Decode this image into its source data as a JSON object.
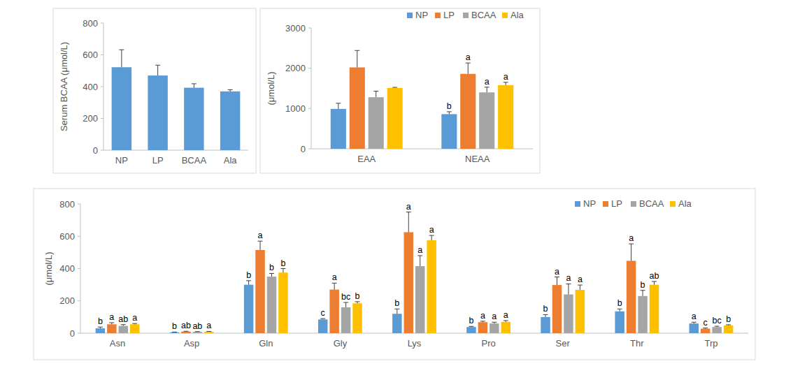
{
  "chart_data": [
    {
      "type": "bar",
      "ylabel": "Serum BCAA (μmol/L)",
      "categories": [
        "NP",
        "LP",
        "BCAA",
        "Ala"
      ],
      "values": [
        522,
        470,
        393,
        370
      ],
      "errors": [
        110,
        65,
        25,
        10
      ],
      "color": "#5b9bd5",
      "ylim": [
        0,
        800
      ],
      "yticks": [
        0,
        200,
        400,
        600,
        800
      ],
      "grid": false
    },
    {
      "type": "bar",
      "ylabel": "(μmol/L)",
      "categories": [
        "EAA",
        "NEAA"
      ],
      "series": [
        {
          "name": "NP",
          "color": "#5b9bd5",
          "values": [
            990,
            860
          ],
          "errors": [
            140,
            60
          ],
          "letters": [
            null,
            "b"
          ]
        },
        {
          "name": "LP",
          "color": "#ed7d31",
          "values": [
            2020,
            1860
          ],
          "errors": [
            420,
            270
          ],
          "letters": [
            null,
            "a"
          ]
        },
        {
          "name": "BCAA",
          "color": "#a5a5a5",
          "values": [
            1280,
            1400
          ],
          "errors": [
            150,
            130
          ],
          "letters": [
            null,
            "a"
          ]
        },
        {
          "name": "Ala",
          "color": "#ffc000",
          "values": [
            1510,
            1580
          ],
          "errors": [
            15,
            70
          ],
          "letters": [
            null,
            "a"
          ]
        }
      ],
      "ylim": [
        0,
        3000
      ],
      "yticks": [
        0,
        1000,
        2000,
        3000
      ],
      "grid": false,
      "legend": "top-right"
    },
    {
      "type": "bar",
      "ylabel": "(μmol/L)",
      "categories": [
        "Asn",
        "Asp",
        "Gln",
        "Gly",
        "Lys",
        "Pro",
        "Ser",
        "Thr",
        "Trp"
      ],
      "series": [
        {
          "name": "NP",
          "color": "#5b9bd5",
          "values": [
            30,
            5,
            300,
            85,
            120,
            38,
            100,
            135,
            60
          ],
          "errors": [
            8,
            2,
            25,
            5,
            30,
            4,
            15,
            15,
            8
          ],
          "letters": [
            "b",
            "b",
            "b",
            "c",
            "b",
            "b",
            "b",
            "b",
            "a"
          ]
        },
        {
          "name": "LP",
          "color": "#ed7d31",
          "values": [
            55,
            10,
            515,
            270,
            625,
            68,
            298,
            448,
            28
          ],
          "errors": [
            10,
            2,
            55,
            40,
            125,
            6,
            50,
            105,
            4
          ],
          "letters": [
            "a",
            "ab",
            "a",
            "a",
            "a",
            "a",
            "a",
            "a",
            "c"
          ]
        },
        {
          "name": "BCAA",
          "color": "#a5a5a5",
          "values": [
            45,
            8,
            350,
            160,
            415,
            60,
            240,
            230,
            38
          ],
          "errors": [
            8,
            2,
            20,
            30,
            65,
            8,
            65,
            35,
            5
          ],
          "letters": [
            "ab",
            "ab",
            "b",
            "bc",
            "a",
            "a",
            "a",
            "b",
            "bc"
          ]
        },
        {
          "name": "Ala",
          "color": "#ffc000",
          "values": [
            55,
            9,
            375,
            185,
            575,
            70,
            268,
            300,
            48
          ],
          "errors": [
            5,
            2,
            25,
            10,
            30,
            8,
            30,
            20,
            4
          ],
          "letters": [
            "a",
            "a",
            "b",
            "b",
            "a",
            "a",
            "a",
            "ab",
            "b"
          ]
        }
      ],
      "ylim": [
        0,
        800
      ],
      "yticks": [
        0,
        200,
        400,
        600,
        800
      ],
      "grid": false,
      "legend": "top-right"
    }
  ]
}
